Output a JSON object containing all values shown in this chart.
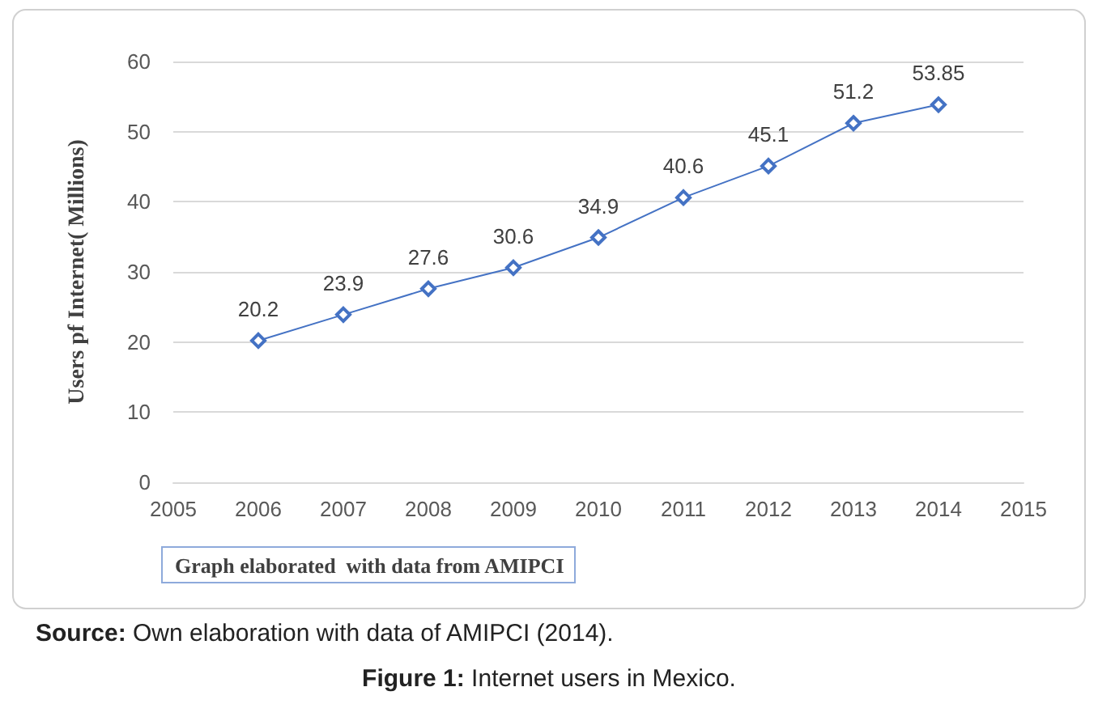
{
  "chart_data": {
    "type": "line",
    "ylabel": "Users pf Internet( Millions)",
    "x": [
      2006,
      2007,
      2008,
      2009,
      2010,
      2011,
      2012,
      2013,
      2014
    ],
    "values": [
      20.2,
      23.9,
      27.6,
      30.6,
      34.9,
      40.6,
      45.1,
      51.2,
      53.85
    ],
    "color": "#4472c4",
    "marker": "diamond",
    "data_labels": true,
    "grid": "y",
    "xlim": [
      2005,
      2015
    ],
    "xticks": [
      2005,
      2006,
      2007,
      2008,
      2009,
      2010,
      2011,
      2012,
      2013,
      2014,
      2015
    ],
    "ylim": [
      0,
      60
    ],
    "yticks": [
      0,
      10,
      20,
      30,
      40,
      50,
      60
    ],
    "annotations": [
      "Graph elaborated  with data from AMIPCI",
      "Source: Own elaboration with data of AMIPCI (2014).",
      "Figure 1: Internet users in Mexico."
    ]
  }
}
